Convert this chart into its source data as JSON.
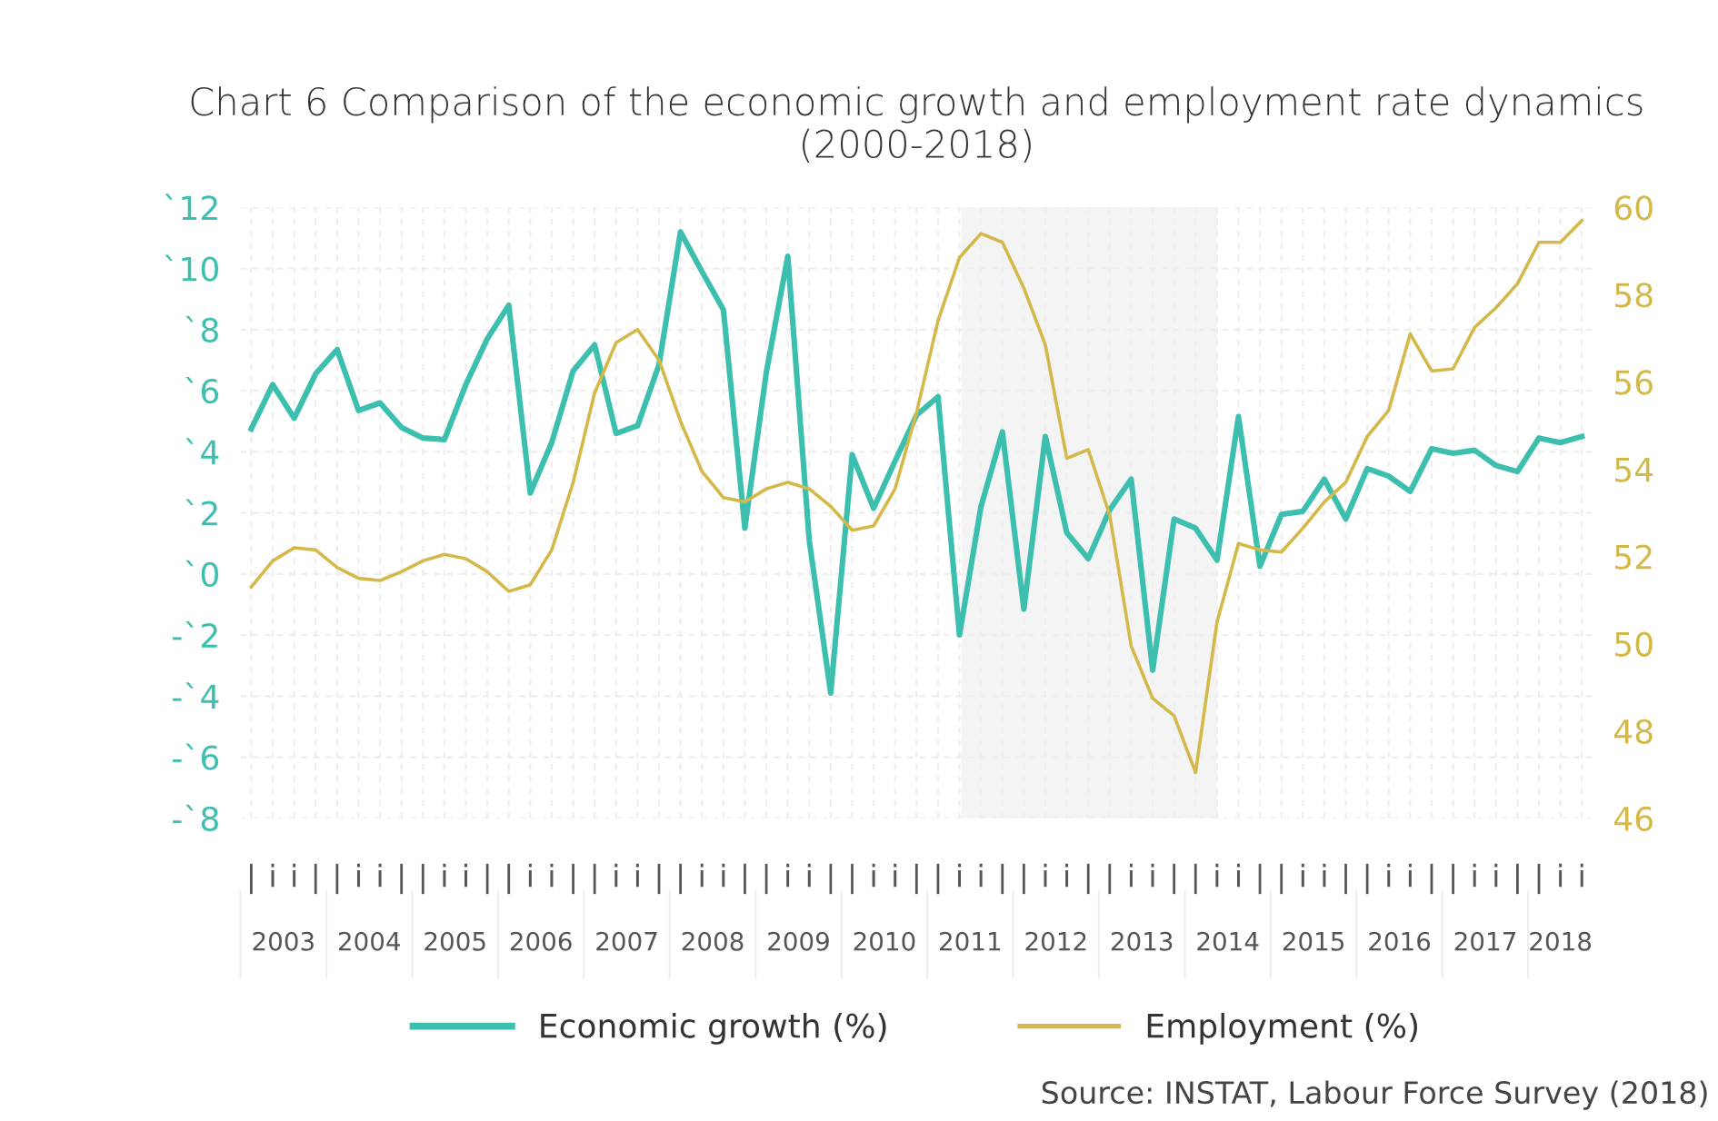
{
  "chart_data": {
    "type": "line",
    "title": "Chart 6 Comparison of the economic growth and employment rate dynamics (2000-2018)",
    "categories": [
      "|",
      "i",
      "i",
      "|",
      "|",
      "i",
      "i",
      "|",
      "|",
      "i",
      "i",
      "|",
      "|",
      "i",
      "i",
      "|",
      "|",
      "i",
      "i",
      "|",
      "|",
      "i",
      "i",
      "|",
      "|",
      "i",
      "i",
      "|",
      "|",
      "i",
      "i",
      "|",
      "|",
      "i",
      "i",
      "|",
      "|",
      "i",
      "i",
      "|",
      "|",
      "i",
      "i",
      "|",
      "|",
      "i",
      "i",
      "|",
      "|",
      "i",
      "i",
      "|",
      "|",
      "i",
      "i",
      "|",
      "|",
      "i",
      "i",
      "|",
      "|",
      "i",
      "i"
    ],
    "series": [
      {
        "name": "Economic growth (%)",
        "color": "#3dbfb0",
        "values": [
          4.75,
          6.2,
          5.1,
          6.55,
          7.35,
          5.35,
          5.6,
          4.8,
          4.45,
          4.4,
          6.2,
          7.7,
          8.8,
          2.65,
          4.3,
          6.65,
          7.5,
          4.6,
          4.85,
          6.85,
          11.2,
          9.9,
          8.65,
          1.5,
          6.6,
          10.4,
          1.1,
          -3.9,
          3.9,
          2.15,
          3.7,
          5.2,
          5.8,
          -2.0,
          2.2,
          4.65,
          -1.15,
          4.5,
          1.35,
          0.5,
          2.1,
          3.1,
          -3.15,
          1.8,
          1.5,
          0.45,
          5.15,
          0.25,
          1.95,
          2.05,
          3.1,
          1.8,
          3.45,
          3.2,
          2.7,
          4.1,
          3.95,
          4.05,
          3.55,
          3.35,
          4.45,
          4.3,
          4.5
        ]
      },
      {
        "name": "Employment (%)",
        "color": "#d4b94a",
        "axis": "y2",
        "values": [
          51.3,
          51.9,
          52.2,
          52.15,
          51.75,
          51.5,
          51.45,
          51.65,
          51.9,
          52.05,
          51.95,
          51.65,
          51.2,
          51.35,
          52.15,
          53.7,
          55.75,
          56.9,
          57.2,
          56.5,
          55.1,
          53.95,
          53.35,
          53.25,
          53.55,
          53.7,
          53.55,
          53.15,
          52.6,
          52.7,
          53.55,
          55.3,
          57.4,
          58.85,
          59.4,
          59.2,
          58.15,
          56.85,
          54.25,
          54.45,
          52.95,
          49.95,
          48.75,
          48.35,
          47.05,
          50.5,
          52.3,
          52.15,
          52.1,
          52.65,
          53.25,
          53.7,
          54.75,
          55.35,
          57.1,
          56.25,
          56.3,
          57.25,
          57.7,
          58.25,
          59.2,
          59.2,
          59.7
        ]
      }
    ],
    "ylim": [
      -8,
      12
    ],
    "yticks": [
      {
        "value": 12,
        "label": "`12"
      },
      {
        "value": 10,
        "label": "`10"
      },
      {
        "value": 8,
        "label": "`8"
      },
      {
        "value": 6,
        "label": "`6"
      },
      {
        "value": 4,
        "label": "`4"
      },
      {
        "value": 2,
        "label": "`2"
      },
      {
        "value": 0,
        "label": "`0"
      },
      {
        "value": -2,
        "label": "-`2"
      },
      {
        "value": -4,
        "label": "-`4"
      },
      {
        "value": -6,
        "label": "-`6"
      },
      {
        "value": -8,
        "label": "-`8"
      }
    ],
    "y2lim": [
      46,
      60
    ],
    "y2ticks": [
      46,
      48,
      50,
      52,
      54,
      56,
      58,
      60
    ],
    "grid": true,
    "legend": "bottom",
    "annotations": [
      "2003",
      "2004",
      "2005",
      "2006",
      "2007",
      "2008",
      "2009",
      "2010",
      "2011",
      "2012",
      "2013",
      "2014",
      "2015",
      "2016",
      "2017",
      "2018",
      "Source: INSTAT, Labour Force Survey (2018)"
    ]
  }
}
